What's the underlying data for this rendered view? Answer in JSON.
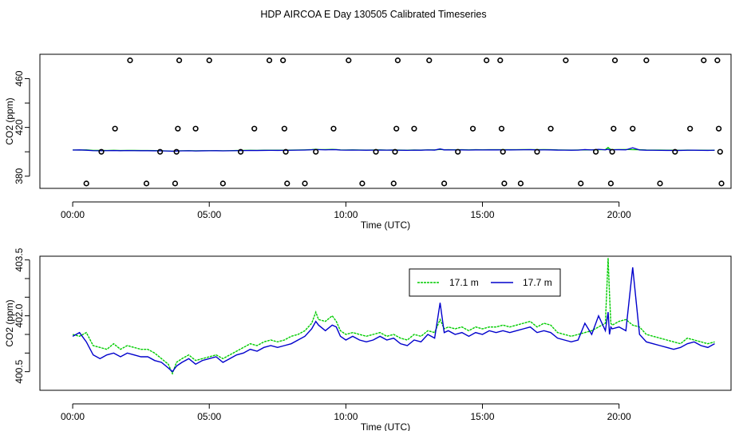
{
  "figure_title": "HDP AIRCOA E  Day 130505  Calibrated Timeseries",
  "chart_data": [
    {
      "type": "scatter",
      "title": "",
      "xlabel": "Time (UTC)",
      "ylabel": "CO2 (ppm)",
      "xlim": [
        -1.2,
        24.1
      ],
      "ylim": [
        370,
        480
      ],
      "x_ticks": [
        {
          "value": 0,
          "label": "00:00"
        },
        {
          "value": 5,
          "label": "05:00"
        },
        {
          "value": 10,
          "label": "10:00"
        },
        {
          "value": 15,
          "label": "15:00"
        },
        {
          "value": 20,
          "label": "20:00"
        }
      ],
      "y_ticks": [
        {
          "value": 380,
          "label": "380"
        },
        {
          "value": 420,
          "label": "420"
        },
        {
          "value": 460,
          "label": "460"
        }
      ],
      "y_minor_ticks": [
        400,
        440
      ],
      "calibration_points": {
        "x": [
          0.5,
          1.05,
          1.55,
          2.1,
          2.7,
          3.2,
          3.75,
          3.8,
          3.85,
          3.9,
          4.5,
          5.0,
          5.5,
          6.15,
          6.65,
          7.2,
          7.7,
          7.75,
          7.8,
          7.85,
          8.5,
          8.9,
          9.55,
          10.1,
          10.6,
          11.1,
          11.75,
          11.8,
          11.85,
          11.9,
          12.5,
          13.05,
          13.6,
          14.1,
          14.65,
          15.15,
          15.65,
          15.7,
          15.75,
          15.8,
          16.4,
          17.0,
          17.5,
          18.05,
          18.6,
          19.15,
          19.7,
          19.75,
          19.8,
          19.85,
          20.5,
          21.0,
          21.5,
          22.05,
          22.6,
          23.1,
          23.6,
          23.65,
          23.7,
          23.75
        ],
        "y": [
          374,
          400,
          419,
          475,
          374,
          400,
          374,
          400,
          419,
          475,
          419,
          475,
          374,
          400,
          419,
          475,
          475,
          419,
          400,
          374,
          374,
          400,
          419,
          475,
          374,
          400,
          374,
          400,
          419,
          475,
          419,
          475,
          374,
          400,
          419,
          475,
          475,
          419,
          400,
          374,
          374,
          400,
          419,
          475,
          374,
          400,
          374,
          400,
          419,
          475,
          419,
          475,
          374,
          400,
          419,
          475,
          475,
          419,
          400,
          374
        ]
      },
      "series": [
        {
          "name": "17.1 m",
          "color": "#00cc00"
        },
        {
          "name": "17.7 m",
          "color": "#0000cc"
        }
      ]
    },
    {
      "type": "line",
      "title": "",
      "xlabel": "Time (UTC)",
      "ylabel": "CO2 (ppm)",
      "xlim": [
        -1.2,
        24.1
      ],
      "ylim": [
        400.0,
        403.6
      ],
      "x_ticks": [
        {
          "value": 0,
          "label": "00:00"
        },
        {
          "value": 5,
          "label": "05:00"
        },
        {
          "value": 10,
          "label": "10:00"
        },
        {
          "value": 15,
          "label": "15:00"
        },
        {
          "value": 20,
          "label": "20:00"
        }
      ],
      "y_ticks": [
        {
          "value": 400.5,
          "label": "400.5"
        },
        {
          "value": 402.0,
          "label": "402.0"
        },
        {
          "value": 403.5,
          "label": "403.5"
        }
      ],
      "y_minor_ticks": [
        401.0,
        401.5,
        402.5,
        403.0
      ],
      "legend": {
        "position": "top-center",
        "entries": [
          "17.1 m",
          "17.7 m"
        ]
      },
      "series": [
        {
          "name": "17.1 m",
          "color": "#00cc00",
          "x": [
            0.0,
            0.25,
            0.5,
            0.75,
            1.0,
            1.25,
            1.5,
            1.75,
            2.0,
            2.25,
            2.5,
            2.75,
            3.0,
            3.25,
            3.5,
            3.65,
            3.8,
            4.0,
            4.25,
            4.5,
            4.75,
            5.0,
            5.25,
            5.5,
            5.75,
            6.0,
            6.25,
            6.5,
            6.75,
            7.0,
            7.25,
            7.5,
            7.75,
            8.0,
            8.25,
            8.5,
            8.75,
            8.9,
            9.0,
            9.25,
            9.5,
            9.65,
            9.8,
            10.0,
            10.25,
            10.5,
            10.75,
            11.0,
            11.25,
            11.5,
            11.75,
            12.0,
            12.25,
            12.5,
            12.75,
            13.0,
            13.25,
            13.45,
            13.6,
            13.75,
            14.0,
            14.25,
            14.5,
            14.75,
            15.0,
            15.25,
            15.5,
            15.75,
            16.0,
            16.25,
            16.5,
            16.75,
            17.0,
            17.25,
            17.5,
            17.75,
            18.0,
            18.25,
            18.5,
            18.75,
            19.0,
            19.25,
            19.5,
            19.6,
            19.65,
            19.7,
            19.75,
            20.0,
            20.25,
            20.5,
            20.75,
            21.0,
            21.25,
            21.5,
            21.75,
            22.0,
            22.25,
            22.5,
            22.75,
            23.0,
            23.25,
            23.5
          ],
          "y": [
            401.5,
            401.45,
            401.55,
            401.2,
            401.15,
            401.1,
            401.25,
            401.1,
            401.2,
            401.15,
            401.1,
            401.1,
            401.0,
            400.85,
            400.7,
            400.45,
            400.75,
            400.85,
            400.95,
            400.8,
            400.85,
            400.9,
            400.95,
            400.85,
            400.95,
            401.05,
            401.15,
            401.25,
            401.2,
            401.3,
            401.35,
            401.3,
            401.35,
            401.45,
            401.5,
            401.6,
            401.8,
            402.1,
            401.9,
            401.85,
            402.0,
            401.85,
            401.6,
            401.5,
            401.55,
            401.5,
            401.45,
            401.5,
            401.55,
            401.45,
            401.5,
            401.4,
            401.35,
            401.5,
            401.45,
            401.6,
            401.55,
            401.9,
            401.65,
            401.7,
            401.65,
            401.7,
            401.6,
            401.7,
            401.65,
            401.7,
            401.7,
            401.75,
            401.7,
            401.75,
            401.8,
            401.85,
            401.7,
            401.8,
            401.75,
            401.55,
            401.5,
            401.45,
            401.5,
            401.55,
            401.6,
            401.7,
            401.8,
            403.55,
            402.6,
            401.8,
            401.75,
            401.85,
            401.9,
            401.75,
            401.7,
            401.5,
            401.45,
            401.4,
            401.35,
            401.3,
            401.25,
            401.4,
            401.35,
            401.3,
            401.25,
            401.3
          ]
        },
        {
          "name": "17.7 m",
          "color": "#0000cc",
          "x": [
            0.0,
            0.25,
            0.5,
            0.75,
            1.0,
            1.25,
            1.5,
            1.75,
            2.0,
            2.25,
            2.5,
            2.75,
            3.0,
            3.25,
            3.5,
            3.65,
            3.8,
            4.0,
            4.25,
            4.5,
            4.75,
            5.0,
            5.25,
            5.5,
            5.75,
            6.0,
            6.25,
            6.5,
            6.75,
            7.0,
            7.25,
            7.5,
            7.75,
            8.0,
            8.25,
            8.5,
            8.75,
            8.9,
            9.0,
            9.25,
            9.5,
            9.65,
            9.8,
            10.0,
            10.25,
            10.5,
            10.75,
            11.0,
            11.25,
            11.5,
            11.75,
            12.0,
            12.25,
            12.5,
            12.75,
            13.0,
            13.25,
            13.45,
            13.6,
            13.75,
            14.0,
            14.25,
            14.5,
            14.75,
            15.0,
            15.25,
            15.5,
            15.75,
            16.0,
            16.25,
            16.5,
            16.75,
            17.0,
            17.25,
            17.5,
            17.75,
            18.0,
            18.25,
            18.5,
            18.75,
            19.0,
            19.25,
            19.5,
            19.6,
            19.65,
            19.7,
            19.75,
            20.0,
            20.25,
            20.5,
            20.75,
            21.0,
            21.25,
            21.5,
            21.75,
            22.0,
            22.25,
            22.5,
            22.75,
            23.0,
            23.25,
            23.5
          ],
          "y": [
            401.45,
            401.55,
            401.3,
            400.95,
            400.85,
            400.95,
            401.0,
            400.9,
            401.0,
            400.95,
            400.9,
            400.9,
            400.8,
            400.75,
            400.6,
            400.5,
            400.65,
            400.75,
            400.85,
            400.7,
            400.8,
            400.85,
            400.9,
            400.75,
            400.85,
            400.95,
            401.0,
            401.1,
            401.05,
            401.15,
            401.2,
            401.15,
            401.2,
            401.25,
            401.35,
            401.45,
            401.65,
            401.85,
            401.75,
            401.6,
            401.75,
            401.7,
            401.45,
            401.35,
            401.45,
            401.35,
            401.3,
            401.35,
            401.45,
            401.35,
            401.4,
            401.25,
            401.2,
            401.35,
            401.3,
            401.5,
            401.4,
            402.35,
            401.55,
            401.6,
            401.5,
            401.55,
            401.45,
            401.55,
            401.5,
            401.6,
            401.55,
            401.6,
            401.55,
            401.6,
            401.65,
            401.7,
            401.55,
            401.6,
            401.55,
            401.4,
            401.35,
            401.3,
            401.35,
            401.8,
            401.5,
            402.0,
            401.6,
            402.1,
            401.5,
            401.7,
            401.65,
            401.7,
            401.6,
            403.3,
            401.5,
            401.3,
            401.25,
            401.2,
            401.15,
            401.1,
            401.15,
            401.25,
            401.3,
            401.2,
            401.15,
            401.25
          ]
        }
      ]
    }
  ]
}
